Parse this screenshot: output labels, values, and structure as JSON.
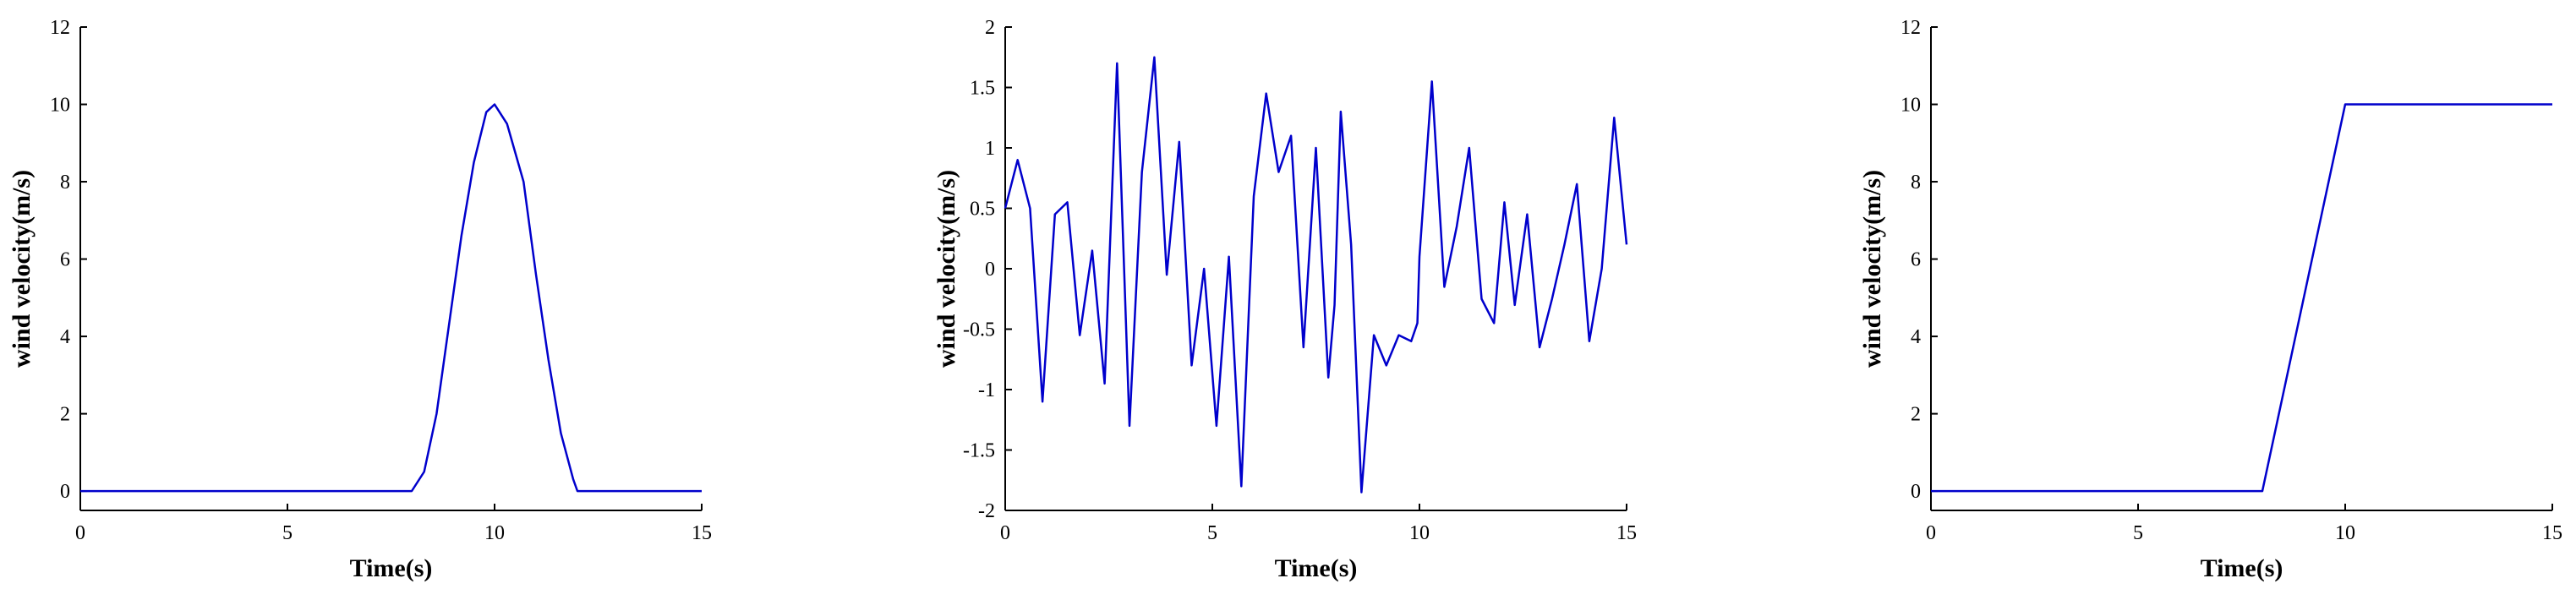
{
  "chart_data": [
    {
      "type": "line",
      "xlabel": "Time(s)",
      "ylabel": "wind velocity(m/s)",
      "xlim": [
        0,
        15
      ],
      "ylim": [
        -0.5,
        12
      ],
      "xticks": [
        0,
        5,
        10,
        15
      ],
      "yticks": [
        0,
        2,
        4,
        6,
        8,
        10,
        12
      ],
      "grid": false,
      "series": [
        {
          "color": "#0000cc",
          "x": [
            0,
            8,
            8.3,
            8.6,
            8.9,
            9.2,
            9.5,
            9.8,
            10.0,
            10.3,
            10.7,
            11.0,
            11.3,
            11.6,
            11.9,
            12.0,
            15
          ],
          "y": [
            0,
            0,
            0.5,
            2.0,
            4.3,
            6.6,
            8.5,
            9.8,
            10.0,
            9.5,
            8.0,
            5.6,
            3.4,
            1.5,
            0.3,
            0,
            0
          ]
        }
      ]
    },
    {
      "type": "line",
      "xlabel": "Time(s)",
      "ylabel": "wind velocity(m/s)",
      "xlim": [
        0,
        15
      ],
      "ylim": [
        -2,
        2
      ],
      "xticks": [
        0,
        5,
        10,
        15
      ],
      "yticks": [
        -2,
        -1.5,
        -1,
        -0.5,
        0,
        0.5,
        1,
        1.5,
        2
      ],
      "grid": false,
      "series": [
        {
          "color": "#0000cc",
          "x": [
            0,
            0.3,
            0.6,
            0.9,
            1.2,
            1.5,
            1.8,
            2.1,
            2.4,
            2.7,
            3.0,
            3.3,
            3.6,
            3.9,
            4.2,
            4.5,
            4.8,
            5.1,
            5.4,
            5.7,
            6.0,
            6.3,
            6.6,
            6.9,
            7.2,
            7.5,
            7.8,
            7.95,
            8.1,
            8.35,
            8.6,
            8.9,
            9.2,
            9.5,
            9.8,
            9.95,
            10.0,
            10.3,
            10.6,
            10.9,
            11.2,
            11.5,
            11.8,
            12.05,
            12.3,
            12.6,
            12.9,
            13.2,
            13.5,
            13.8,
            14.1,
            14.4,
            14.7,
            15.0
          ],
          "y": [
            0.5,
            0.9,
            0.5,
            -1.1,
            0.45,
            0.55,
            -0.55,
            0.15,
            -0.95,
            1.7,
            -1.3,
            0.8,
            1.75,
            -0.05,
            1.05,
            -0.8,
            0.0,
            -1.3,
            0.1,
            -1.8,
            0.6,
            1.45,
            0.8,
            1.1,
            -0.65,
            1.0,
            -0.9,
            -0.3,
            1.3,
            0.2,
            -1.85,
            -0.55,
            -0.8,
            -0.55,
            -0.6,
            -0.45,
            0.1,
            1.55,
            -0.15,
            0.35,
            1.0,
            -0.25,
            -0.45,
            0.55,
            -0.3,
            0.45,
            -0.65,
            -0.25,
            0.2,
            0.7,
            -0.6,
            0.0,
            1.25,
            0.2
          ]
        }
      ]
    },
    {
      "type": "line",
      "xlabel": "Time(s)",
      "ylabel": "wind velocity(m/s)",
      "xlim": [
        0,
        15
      ],
      "ylim": [
        -0.5,
        12
      ],
      "xticks": [
        0,
        5,
        10,
        15
      ],
      "yticks": [
        0,
        2,
        4,
        6,
        8,
        10,
        12
      ],
      "grid": false,
      "series": [
        {
          "color": "#0000cc",
          "x": [
            0,
            8,
            10,
            15
          ],
          "y": [
            0,
            0,
            10,
            10
          ]
        }
      ]
    }
  ]
}
